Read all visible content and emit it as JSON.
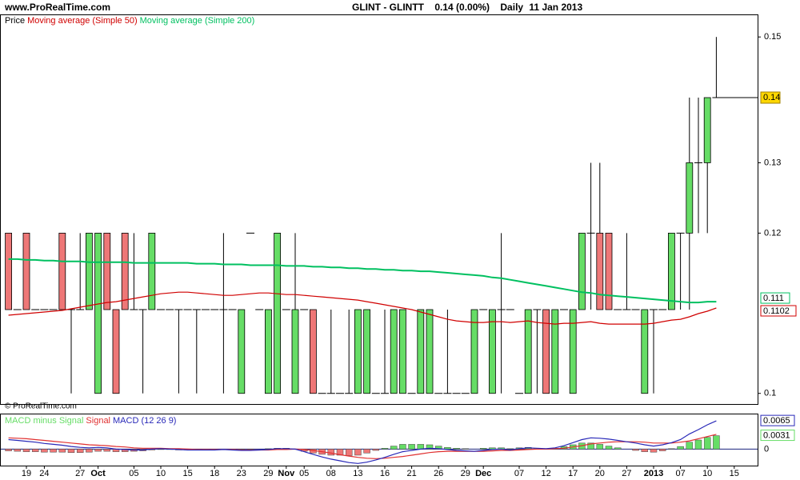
{
  "header": {
    "site": "www.ProRealTime.com",
    "symbol": "GLINT - GLINTT",
    "quote": "0.14 (0.00%)",
    "period": "Daily",
    "date": "11 Jan 2013"
  },
  "chart_data": [
    {
      "type": "candlestick",
      "legend_label": "Price",
      "copyright": "© ProRealTime.com",
      "log_scale": true,
      "ylim": [
        0.0988,
        0.1539
      ],
      "yticks": [
        0.1,
        0.12,
        0.13,
        0.15
      ],
      "up_color": "#66dd66",
      "down_color": "#ee7777",
      "last_color": "#ffd700",
      "categories": [
        null,
        null,
        "19",
        null,
        "24",
        null,
        null,
        null,
        "27",
        null,
        "Oct",
        null,
        null,
        null,
        "05",
        null,
        null,
        "10",
        null,
        null,
        "15",
        null,
        null,
        "18",
        null,
        null,
        "23",
        null,
        null,
        "29",
        null,
        "Nov",
        null,
        "05",
        null,
        null,
        "08",
        null,
        null,
        "13",
        null,
        null,
        "16",
        null,
        null,
        "21",
        null,
        null,
        "26",
        null,
        null,
        "29",
        null,
        "Dec",
        null,
        null,
        null,
        "07",
        null,
        null,
        "12",
        null,
        null,
        "17",
        null,
        null,
        "20",
        null,
        null,
        "27",
        null,
        null,
        "2013",
        null,
        null,
        "07",
        null,
        null,
        "10",
        null,
        null,
        "15"
      ],
      "open": [
        0.12,
        0.11,
        0.12,
        0.11,
        0.11,
        0.11,
        0.12,
        0.11,
        0.11,
        0.11,
        0.1,
        0.12,
        0.11,
        0.12,
        0.11,
        0.11,
        0.11,
        0.11,
        0.11,
        0.11,
        0.11,
        0.11,
        0.11,
        0.11,
        0.11,
        0.11,
        0.1,
        0.12,
        0.11,
        0.1,
        0.1,
        0.11,
        0.1,
        0.11,
        0.11,
        0.1,
        0.1,
        0.1,
        0.1,
        0.1,
        0.1,
        0.1,
        0.1,
        0.1,
        0.1,
        0.1,
        0.1,
        0.1,
        0.1,
        0.1,
        0.1,
        0.1,
        0.1,
        0.11,
        0.1,
        0.11,
        0.11,
        0.1,
        0.1,
        0.11,
        0.11,
        0.1,
        0.11,
        0.1,
        0.11,
        0.12,
        0.12,
        0.12,
        0.11,
        0.11,
        0.11,
        0.1,
        0.11,
        0.11,
        0.11,
        0.12,
        0.12,
        0.13,
        0.13,
        0.14,
        null,
        null
      ],
      "high": [
        0.12,
        0.11,
        0.12,
        0.11,
        0.11,
        0.11,
        0.12,
        0.11,
        0.12,
        0.12,
        0.12,
        0.12,
        0.11,
        0.12,
        0.12,
        0.11,
        0.12,
        0.11,
        0.11,
        0.11,
        0.11,
        0.11,
        0.11,
        0.11,
        0.12,
        0.11,
        0.11,
        0.12,
        0.11,
        0.11,
        0.12,
        0.11,
        0.12,
        0.11,
        0.11,
        0.1,
        0.11,
        0.1,
        0.11,
        0.11,
        0.11,
        0.1,
        0.11,
        0.11,
        0.11,
        0.1,
        0.11,
        0.11,
        0.1,
        0.11,
        0.1,
        0.1,
        0.11,
        0.11,
        0.11,
        0.12,
        0.11,
        0.1,
        0.11,
        0.11,
        0.11,
        0.11,
        0.11,
        0.11,
        0.12,
        0.13,
        0.13,
        0.12,
        0.11,
        0.12,
        0.11,
        0.11,
        0.11,
        0.11,
        0.12,
        0.12,
        0.14,
        0.14,
        0.14,
        0.15,
        null,
        null
      ],
      "low": [
        0.11,
        0.11,
        0.11,
        0.11,
        0.11,
        0.11,
        0.11,
        0.1,
        0.11,
        0.11,
        0.1,
        0.11,
        0.1,
        0.11,
        0.11,
        0.1,
        0.11,
        0.11,
        0.11,
        0.1,
        0.11,
        0.1,
        0.11,
        0.11,
        0.1,
        0.11,
        0.1,
        0.12,
        0.11,
        0.1,
        0.1,
        0.11,
        0.1,
        0.11,
        0.1,
        0.1,
        0.1,
        0.1,
        0.1,
        0.1,
        0.1,
        0.1,
        0.1,
        0.1,
        0.1,
        0.1,
        0.1,
        0.1,
        0.1,
        0.1,
        0.1,
        0.1,
        0.1,
        0.11,
        0.1,
        0.1,
        0.11,
        0.1,
        0.1,
        0.1,
        0.1,
        0.1,
        0.11,
        0.1,
        0.11,
        0.11,
        0.11,
        0.11,
        0.11,
        0.11,
        0.11,
        0.1,
        0.1,
        0.11,
        0.11,
        0.11,
        0.11,
        0.12,
        0.12,
        0.14,
        null,
        null
      ],
      "close": [
        0.11,
        0.11,
        0.11,
        0.11,
        0.11,
        0.11,
        0.11,
        0.11,
        0.11,
        0.12,
        0.12,
        0.11,
        0.1,
        0.11,
        0.11,
        0.11,
        0.12,
        0.11,
        0.11,
        0.11,
        0.11,
        0.11,
        0.11,
        0.11,
        0.11,
        0.11,
        0.11,
        0.12,
        0.11,
        0.11,
        0.12,
        0.11,
        0.11,
        0.11,
        0.1,
        0.1,
        0.1,
        0.1,
        0.1,
        0.11,
        0.11,
        0.1,
        0.1,
        0.11,
        0.11,
        0.1,
        0.11,
        0.11,
        0.1,
        0.1,
        0.1,
        0.1,
        0.11,
        0.11,
        0.11,
        0.11,
        0.11,
        0.1,
        0.11,
        0.11,
        0.1,
        0.11,
        0.11,
        0.11,
        0.12,
        0.12,
        0.11,
        0.11,
        0.11,
        0.11,
        0.11,
        0.11,
        0.11,
        0.11,
        0.12,
        0.12,
        0.13,
        0.13,
        0.14,
        0.14,
        null,
        null
      ],
      "overlays": [
        {
          "name": "Moving average (Simple 50)",
          "color": "#d00000",
          "values": [
            0.1093,
            0.1094,
            0.1095,
            0.1096,
            0.1097,
            0.1098,
            0.1099,
            0.1101,
            0.1103,
            0.1105,
            0.1107,
            0.1109,
            0.111,
            0.1112,
            0.1114,
            0.1116,
            0.1118,
            0.112,
            0.1121,
            0.1122,
            0.1122,
            0.1121,
            0.112,
            0.1119,
            0.1118,
            0.1118,
            0.1119,
            0.112,
            0.1121,
            0.1121,
            0.112,
            0.1119,
            0.1119,
            0.1118,
            0.1117,
            0.1116,
            0.1115,
            0.1114,
            0.1113,
            0.1112,
            0.111,
            0.1108,
            0.1106,
            0.1104,
            0.1102,
            0.11,
            0.1097,
            0.1094,
            0.1091,
            0.1088,
            0.1086,
            0.1085,
            0.1084,
            0.1084,
            0.1085,
            0.1085,
            0.1084,
            0.1085,
            0.1086,
            0.1084,
            0.1083,
            0.1082,
            0.1083,
            0.1083,
            0.1084,
            0.1085,
            0.1083,
            0.1082,
            0.1082,
            0.1082,
            0.1082,
            0.1082,
            0.1083,
            0.1085,
            0.1087,
            0.1088,
            0.1091,
            0.1095,
            0.1098,
            0.1102,
            null,
            null
          ]
        },
        {
          "name": "Moving average (Simple 200)",
          "color": "#00c060",
          "values": [
            0.1165,
            0.1165,
            0.1164,
            0.1164,
            0.1163,
            0.1163,
            0.1162,
            0.1162,
            0.1162,
            0.1161,
            0.1161,
            0.1161,
            0.1161,
            0.1161,
            0.116,
            0.116,
            0.116,
            0.116,
            0.116,
            0.116,
            0.116,
            0.1159,
            0.1159,
            0.1159,
            0.1158,
            0.1158,
            0.1158,
            0.1157,
            0.1157,
            0.1157,
            0.1157,
            0.1156,
            0.1156,
            0.1156,
            0.1155,
            0.1155,
            0.1154,
            0.1154,
            0.1153,
            0.1153,
            0.1152,
            0.1152,
            0.1151,
            0.1151,
            0.115,
            0.115,
            0.1149,
            0.1149,
            0.1148,
            0.1147,
            0.1146,
            0.1145,
            0.1144,
            0.1143,
            0.1141,
            0.114,
            0.1138,
            0.1136,
            0.1134,
            0.1132,
            0.113,
            0.1128,
            0.1126,
            0.1124,
            0.1122,
            0.1121,
            0.1119,
            0.1118,
            0.1117,
            0.1116,
            0.1115,
            0.1114,
            0.1113,
            0.1112,
            0.1111,
            0.111,
            0.1109,
            0.1109,
            0.111,
            0.111,
            null,
            null
          ]
        }
      ]
    },
    {
      "type": "macd",
      "ylim": [
        -0.0038,
        0.008
      ],
      "yticks": [
        0
      ],
      "series": [
        {
          "name": "MACD minus Signal",
          "kind": "histogram",
          "color": "#66dd66",
          "negative_color": "#ee7777",
          "values": [
            -0.0004,
            -0.0005,
            -0.0006,
            -0.0006,
            -0.0007,
            -0.0007,
            -0.0007,
            -0.0008,
            -0.0008,
            -0.0007,
            -0.0005,
            -0.0005,
            -0.0006,
            -0.0006,
            -0.0005,
            -0.0004,
            -0.0002,
            -0.0001,
            -0.0001,
            -0.0002,
            -0.0002,
            -0.0001,
            -0.0001,
            -0.0001,
            0,
            -0.0001,
            -0.0001,
            -0.0001,
            0,
            0.0001,
            0.0002,
            0.0002,
            0,
            -0.0005,
            -0.0009,
            -0.0012,
            -0.0014,
            -0.0014,
            -0.0015,
            -0.0014,
            -0.0009,
            -0.0003,
            0.0002,
            0.0007,
            0.0011,
            0.0011,
            0.0011,
            0.001,
            0.0007,
            0.0004,
            0.0002,
            0.0001,
            0,
            0.0002,
            0.0003,
            0.0003,
            0.0001,
            0.0003,
            0.0004,
            0.0002,
            0.0001,
            0.0002,
            0.0006,
            0.001,
            0.0014,
            0.0014,
            0.0011,
            0.0007,
            0.0003,
            0,
            -0.0003,
            -0.0006,
            -0.0007,
            -0.0004,
            0.0001,
            0.0006,
            0.0016,
            0.0021,
            0.0027,
            0.0031,
            null,
            null
          ]
        },
        {
          "name": "Signal",
          "kind": "line",
          "color": "#e03030",
          "values": [
            0.0026,
            0.0025,
            0.0024,
            0.0022,
            0.002,
            0.0018,
            0.0016,
            0.0014,
            0.0012,
            0.001,
            0.0009,
            0.0008,
            0.0006,
            0.0005,
            0.0003,
            0.0002,
            0.0002,
            0.0002,
            0.0001,
            0.0001,
            0,
            -0.0001,
            -0.0001,
            -0.0001,
            -0.0001,
            -0.0001,
            -0.0002,
            -0.0002,
            -0.0002,
            -0.0002,
            -0.0001,
            -0.0001,
            0,
            -0.0001,
            -0.0003,
            -0.0006,
            -0.0009,
            -0.0013,
            -0.0016,
            -0.0019,
            -0.0021,
            -0.0022,
            -0.0021,
            -0.0019,
            -0.0017,
            -0.0014,
            -0.0011,
            -0.0008,
            -0.0006,
            -0.0005,
            -0.0005,
            -0.0005,
            -0.0005,
            -0.0005,
            -0.0004,
            -0.0003,
            -0.0003,
            -0.0002,
            -0.0001,
            0,
            0,
            0.0001,
            0.0002,
            0.0005,
            0.0008,
            0.0012,
            0.0014,
            0.0016,
            0.0017,
            0.0017,
            0.0017,
            0.0016,
            0.0014,
            0.0014,
            0.0014,
            0.0016,
            0.0019,
            0.0024,
            0.0029,
            0.0034,
            null,
            null
          ]
        },
        {
          "name": "MACD (12 26 9)",
          "kind": "line",
          "color": "#2828b8",
          "values": [
            0.0022,
            0.002,
            0.0018,
            0.0016,
            0.0013,
            0.0011,
            0.0009,
            0.0006,
            0.0004,
            0.0003,
            0.0004,
            0.0003,
            0,
            -0.0001,
            -0.0002,
            -0.0002,
            0,
            0.0001,
            0,
            -0.0001,
            -0.0002,
            -0.0002,
            -0.0002,
            -0.0002,
            -0.0001,
            -0.0002,
            -0.0003,
            -0.0003,
            -0.0002,
            -0.0001,
            0.0001,
            0.0001,
            0,
            -0.0006,
            -0.0012,
            -0.0018,
            -0.0023,
            -0.0027,
            -0.0031,
            -0.0033,
            -0.003,
            -0.0025,
            -0.0019,
            -0.0012,
            -0.0006,
            -0.0003,
            0,
            0.0002,
            0.0001,
            -0.0001,
            -0.0003,
            -0.0004,
            -0.0005,
            -0.0003,
            -0.0001,
            0,
            -0.0002,
            0.0001,
            0.0003,
            0.0002,
            0.0001,
            0.0003,
            0.0008,
            0.0015,
            0.0022,
            0.0026,
            0.0025,
            0.0023,
            0.002,
            0.0017,
            0.0014,
            0.001,
            0.0007,
            0.001,
            0.0015,
            0.0022,
            0.0035,
            0.0045,
            0.0056,
            0.0065,
            null,
            null
          ]
        }
      ]
    }
  ]
}
